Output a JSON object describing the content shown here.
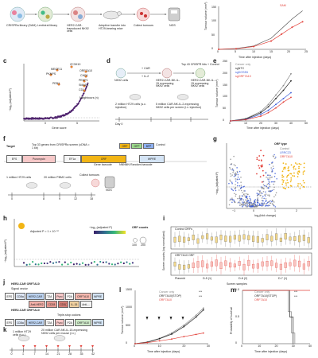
{
  "panel_a": {
    "labels": [
      "CRISPRa library (SAM)",
      "Lentiviral library",
      "HER2-CAR-transduced NK92 cells",
      "Adoptive transfer into HT29-bearing mice",
      "Collect tumours",
      "NGS"
    ]
  },
  "panel_b": {
    "legend": [
      "SAM"
    ],
    "ylabel": "Tumour volume (mm³)",
    "xlabel": "Time after injection (days)",
    "yticks": [
      "0",
      "50",
      "100",
      "150"
    ],
    "xticks": [
      "0",
      "5",
      "10",
      "15",
      "20",
      "25"
    ]
  },
  "panel_c": {
    "label": "c",
    "ylabel": "−log₁₀(adjusted P)",
    "xlabel": "Gene score",
    "xticks": [
      "0",
      "5"
    ],
    "genes": [
      "ZC3H10",
      "MEGF11",
      "ORF7A10",
      "PKNPS",
      "CHD1",
      "PEKP1",
      "PEB1",
      "SMAD1",
      "CD1"
    ],
    "legend_title": "Neighbours (n)"
  },
  "panel_d": {
    "label": "d",
    "cells": "NK92 cells",
    "treatments": [
      "+ CAR",
      "+ IL-2"
    ],
    "steps": [
      "HER2-CAR-NK-IL-15 expressing NK92 cells",
      "Top 43 CRISPR hits + Control",
      "HER2-CAR-NK-IL-15 expressing NK92 cells"
    ],
    "note1": "2 million HT29 cells (s.c. injection)",
    "note2": "5 million CAR-NK-IL-2-expressing NK92 cells per screen (i.v. injection)",
    "axis": "Day 0"
  },
  "panel_e": {
    "label": "e",
    "legend": [
      "Cancer only",
      "sgNTC",
      "sgDOSE6",
      "sgORF7A10"
    ],
    "ylabel": "Tumour volume (mm³)",
    "xlabel": "Time after injection (days)",
    "yticks": [
      "0",
      "50",
      "100",
      "150",
      "200",
      "250"
    ],
    "xticks": [
      "0",
      "10",
      "20",
      "30",
      "40",
      "50"
    ]
  },
  "panel_f": {
    "label": "f",
    "target": "Target",
    "library": "Top 33 genes from CRISPRa screen (cDNA = 1 kb)",
    "orfs": [
      "ORF",
      "GFP",
      "BFP",
      "Control"
    ],
    "construct": [
      "EFS",
      "Puromycin",
      "EF1a",
      "ORF",
      "WPRE"
    ],
    "barcodes": [
      "Gene barcode",
      "NNNNN Random barcode"
    ],
    "cells1": "1 million HT29 cells",
    "cells2": "20 million PBMC cells",
    "collect": "Collect tumours",
    "ngs": "NGS",
    "days": [
      "0",
      "8",
      "9",
      "12",
      "18"
    ]
  },
  "panel_g": {
    "label": "g",
    "legend_title": "ORF type",
    "legend": [
      "Control",
      "LRRC23",
      "ORF7A10"
    ],
    "ylabel": "−log₁₀(adjusted P)",
    "xlabel": "log₂(fold change)",
    "xticks": [
      "−1",
      "0",
      "1",
      "2"
    ]
  },
  "panel_h": {
    "label": "h",
    "annotation": "Adjusted P = 1 × 10⁻¹⁰",
    "ylabel": "−log₁₀(adjusted P)",
    "legend_title": "−log₁₀(adjusted P)",
    "size_title": "ORF counts",
    "sizes": [
      "100",
      "200"
    ]
  },
  "panel_i": {
    "label": "i",
    "rows": [
      "Control ORFs",
      "ORF7A10 ORF"
    ],
    "ylabel": "Screen counts (log normalized)",
    "xlabel": "Screen samples",
    "groups": [
      "Plasmid",
      "D-5 (1)",
      "D-8 (2)",
      "D-7 (1)"
    ]
  },
  "panel_j": {
    "label": "j",
    "title1": "HER2-CAR ORF7A10",
    "sub1": "Signal vector",
    "construct1": [
      "EFS",
      "CD8a",
      "HER2-CAR",
      "T2A",
      "Puro",
      "P2A",
      "ORF7A10",
      "WPRE"
    ],
    "sub1b": "Anti-HER2",
    "construct1b": [
      "Anti-HER2",
      "CD28",
      "CD3ζ",
      "IL-15",
      "Anti-..."
    ],
    "title2": "HER2-CAR ORF7A10",
    "sub2": "Triple-stop codons",
    "construct2": [
      "EFS",
      "CD8a",
      "HER2-CAR",
      "T2A",
      "Puro",
      "P2A",
      "ORF7A10",
      "WPRE"
    ]
  },
  "panel_k": {
    "label": "k",
    "note1": "1 million HT29 cells (s.c.)",
    "note2": "20 million CAR-NK-IL-15-expressing NK92 cells per mouse (i.v.)",
    "days": [
      "0",
      "1",
      "7",
      "14",
      "21",
      "28",
      "35",
      "42"
    ]
  },
  "panel_l": {
    "label": "l",
    "legend": [
      "Cancer only",
      "ORF7A10(STOP)",
      "ORF7A10"
    ],
    "ylabel": "Tumour volume (mm³)",
    "xlabel": "Time after injection (days)",
    "yticks": [
      "0",
      "500",
      "1000",
      "1500"
    ],
    "xticks": [
      "0",
      "10",
      "20",
      "30"
    ],
    "stars": [
      "***",
      "***"
    ]
  },
  "panel_m": {
    "label": "m",
    "legend": [
      "Cancer only",
      "ORF7A10(STOP)",
      "ORF7A10"
    ],
    "ylabel": "Probability of survival",
    "xlabel": "Time after injection (days)",
    "yticks": [
      "0",
      "0.5",
      "1.0"
    ],
    "xticks": [
      "0",
      "10",
      "20",
      "30",
      "40"
    ],
    "stars": [
      "***",
      "***"
    ]
  },
  "colors": {
    "red": "#e3413a",
    "gold": "#f2b515",
    "blue": "#3a5bd9",
    "grey": "#8a8a8a",
    "purple": "#4b1d6b",
    "orange": "#f28c28",
    "green": "#2a9d6b"
  }
}
